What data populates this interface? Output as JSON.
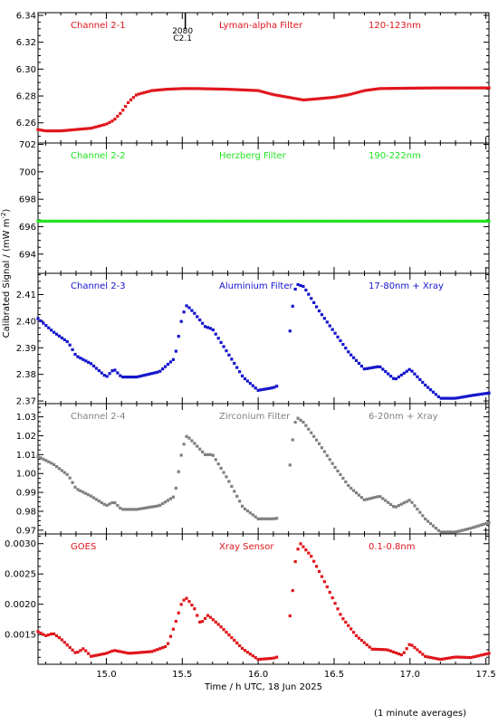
{
  "figure": {
    "ylabel": "Calibrated Signal / (mW m",
    "ylabel_sup": "-2",
    "ylabel_end": ")",
    "xlabel": "Time / h UTC, 18 Jun 2025",
    "footnote": "(1 minute averages)",
    "marker": {
      "label_top": "2080",
      "label_bottom": "C2.1"
    },
    "x_ticks": [
      "15.0",
      "15.5",
      "16.0",
      "16.5",
      "17.0",
      "17.5"
    ]
  },
  "chart_data": [
    {
      "type": "scatter",
      "channel": "Channel 2-1",
      "filter": "Lyman-alpha Filter",
      "band": "120-123nm",
      "color": "#e0151b",
      "xlim": [
        14.55,
        17.52
      ],
      "ylim": [
        6.245,
        6.342
      ],
      "y_ticks": [
        "6.26",
        "6.28",
        "6.30",
        "6.32",
        "6.34"
      ],
      "x": [
        14.55,
        14.6,
        14.7,
        14.8,
        14.9,
        15.0,
        15.05,
        15.1,
        15.15,
        15.2,
        15.3,
        15.4,
        15.5,
        15.6,
        15.8,
        16.0,
        16.1,
        16.2,
        16.3,
        16.4,
        16.5,
        16.6,
        16.7,
        16.8,
        17.0,
        17.2,
        17.4,
        17.52
      ],
      "y": [
        6.255,
        6.254,
        6.254,
        6.255,
        6.256,
        6.259,
        6.262,
        6.268,
        6.276,
        6.281,
        6.284,
        6.285,
        6.2855,
        6.2855,
        6.285,
        6.284,
        6.281,
        6.279,
        6.277,
        6.278,
        6.279,
        6.281,
        6.284,
        6.2855,
        6.2858,
        6.286,
        6.286,
        6.286
      ]
    },
    {
      "type": "scatter",
      "channel": "Channel 2-2",
      "filter": "Herzberg Filter",
      "band": "190-222nm",
      "color": "#1ee51e",
      "xlim": [
        14.55,
        17.52
      ],
      "ylim": [
        692.6,
        702.1
      ],
      "y_ticks": [
        "694",
        "696",
        "698",
        "700",
        "702"
      ],
      "x": [
        14.55,
        15.0,
        15.5,
        16.0,
        16.5,
        17.0,
        17.52
      ],
      "y": [
        696.4,
        696.4,
        696.4,
        696.4,
        696.4,
        696.4,
        696.4
      ]
    },
    {
      "type": "scatter",
      "channel": "Channel 2-3",
      "filter": "Aluminium Filter",
      "band": "17-80nm + Xray",
      "color": "#1414cc",
      "xlim": [
        14.55,
        17.52
      ],
      "ylim": [
        2.369,
        2.418
      ],
      "y_ticks": [
        "2.37",
        "2.38",
        "2.39",
        "2.40",
        "2.41"
      ],
      "x": [
        14.55,
        14.65,
        14.75,
        14.8,
        14.9,
        15.0,
        15.05,
        15.1,
        15.2,
        15.35,
        15.45,
        15.5,
        15.53,
        15.58,
        15.65,
        15.7,
        15.8,
        15.9,
        16.0,
        16.1,
        16.18,
        16.22,
        16.25,
        16.3,
        16.4,
        16.5,
        16.6,
        16.7,
        16.8,
        16.9,
        17.0,
        17.1,
        17.2,
        17.3,
        17.4,
        17.52
      ],
      "y": [
        2.401,
        2.396,
        2.392,
        2.387,
        2.384,
        2.379,
        2.382,
        2.379,
        2.379,
        2.381,
        2.386,
        2.402,
        2.406,
        2.403,
        2.398,
        2.397,
        2.388,
        2.379,
        2.374,
        2.375,
        2.377,
        2.403,
        2.414,
        2.413,
        2.404,
        2.396,
        2.388,
        2.382,
        2.383,
        2.378,
        2.382,
        2.376,
        2.371,
        2.371,
        2.372,
        2.373
      ]
    },
    {
      "type": "scatter",
      "channel": "Channel 2-4",
      "filter": "Zirconium Filter",
      "band": "6-20nm + Xray",
      "color": "#808080",
      "xlim": [
        14.55,
        17.52
      ],
      "ylim": [
        0.968,
        1.037
      ],
      "y_ticks": [
        "0.97",
        "0.98",
        "0.99",
        "1.00",
        "1.01",
        "1.02",
        "1.03"
      ],
      "x": [
        14.55,
        14.65,
        14.75,
        14.8,
        14.9,
        15.0,
        15.05,
        15.1,
        15.2,
        15.35,
        15.45,
        15.5,
        15.53,
        15.58,
        15.65,
        15.7,
        15.8,
        15.9,
        16.0,
        16.1,
        16.18,
        16.22,
        16.25,
        16.3,
        16.4,
        16.5,
        16.6,
        16.7,
        16.8,
        16.9,
        17.0,
        17.1,
        17.2,
        17.3,
        17.4,
        17.52
      ],
      "y": [
        1.009,
        1.005,
        0.999,
        0.992,
        0.988,
        0.983,
        0.985,
        0.981,
        0.981,
        0.983,
        0.988,
        1.013,
        1.02,
        1.016,
        1.01,
        1.01,
        0.997,
        0.982,
        0.976,
        0.976,
        0.977,
        1.014,
        1.03,
        1.027,
        1.016,
        1.004,
        0.993,
        0.986,
        0.988,
        0.982,
        0.986,
        0.976,
        0.969,
        0.969,
        0.971,
        0.974
      ]
    },
    {
      "type": "scatter",
      "channel": "GOES",
      "filter": "Xray Sensor",
      "band": "0.1-0.8nm",
      "color": "#e0151b",
      "xlim": [
        14.55,
        17.52
      ],
      "ylim": [
        0.00101,
        0.00316
      ],
      "y_ticks": [
        "0.0015",
        "0.0020",
        "0.0025",
        "0.0030"
      ],
      "x": [
        14.55,
        14.6,
        14.65,
        14.7,
        14.8,
        14.85,
        14.9,
        15.0,
        15.05,
        15.15,
        15.3,
        15.4,
        15.45,
        15.5,
        15.53,
        15.58,
        15.62,
        15.67,
        15.75,
        15.9,
        16.0,
        16.1,
        16.18,
        16.22,
        16.25,
        16.28,
        16.35,
        16.45,
        16.55,
        16.65,
        16.75,
        16.85,
        16.95,
        17.0,
        17.1,
        17.2,
        17.3,
        17.4,
        17.52
      ],
      "y": [
        0.00155,
        0.00148,
        0.00152,
        0.00143,
        0.00119,
        0.00127,
        0.00114,
        0.00119,
        0.00124,
        0.00119,
        0.00122,
        0.00131,
        0.00165,
        0.00205,
        0.0021,
        0.00193,
        0.00168,
        0.00182,
        0.00164,
        0.00126,
        0.00109,
        0.00111,
        0.00117,
        0.00203,
        0.00285,
        0.003,
        0.00279,
        0.00231,
        0.00179,
        0.00147,
        0.00126,
        0.00125,
        0.00116,
        0.00135,
        0.00114,
        0.00109,
        0.00113,
        0.00112,
        0.00119
      ]
    }
  ]
}
